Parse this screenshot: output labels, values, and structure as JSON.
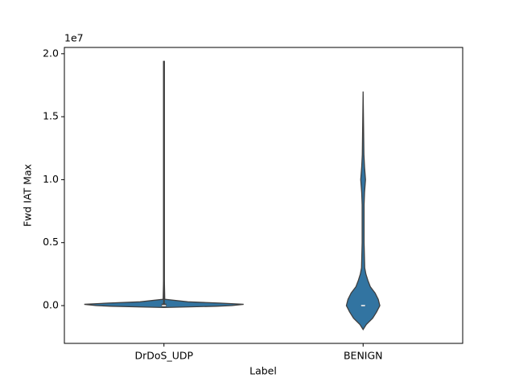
{
  "chart_data": {
    "type": "violin",
    "x_label": "Label",
    "y_label": "Fwd IAT Max",
    "offset_label": "1e7",
    "categories": [
      "DrDoS_UDP",
      "BENIGN"
    ],
    "color": "#3274a1",
    "edge_color": "#3f3f3f",
    "violins": [
      {
        "y": [
          -150000,
          -50000,
          0,
          100000,
          200000,
          300000,
          500000,
          2000000,
          19400000
        ],
        "density": [
          0,
          0.66,
          0.85,
          1.0,
          0.7,
          0.3,
          0.01,
          0.005,
          0.005
        ],
        "box": [
          -100000,
          0,
          150000
        ],
        "whisker": [
          -100000,
          19400000
        ]
      },
      {
        "y": [
          -1900000,
          -1500000,
          -1000000,
          -500000,
          0,
          500000,
          1000000,
          1500000,
          2000000,
          2500000,
          3000000,
          5000000,
          8000000,
          9000000,
          10000000,
          11000000,
          12000000,
          17000000
        ],
        "density": [
          0,
          0.04,
          0.12,
          0.17,
          0.21,
          0.19,
          0.15,
          0.09,
          0.06,
          0.035,
          0.02,
          0.012,
          0.012,
          0.018,
          0.03,
          0.018,
          0.01,
          0
        ],
        "box": [
          -10000,
          0,
          10000
        ],
        "whisker": [
          -20000,
          20000
        ]
      }
    ],
    "ylim": [
      -3000000,
      20500000
    ],
    "yticks": [
      {
        "value": 0,
        "label": "0.0"
      },
      {
        "value": 5000000,
        "label": "0.5"
      },
      {
        "value": 10000000,
        "label": "1.0"
      },
      {
        "value": 15000000,
        "label": "1.5"
      },
      {
        "value": 20000000,
        "label": "2.0"
      }
    ]
  }
}
